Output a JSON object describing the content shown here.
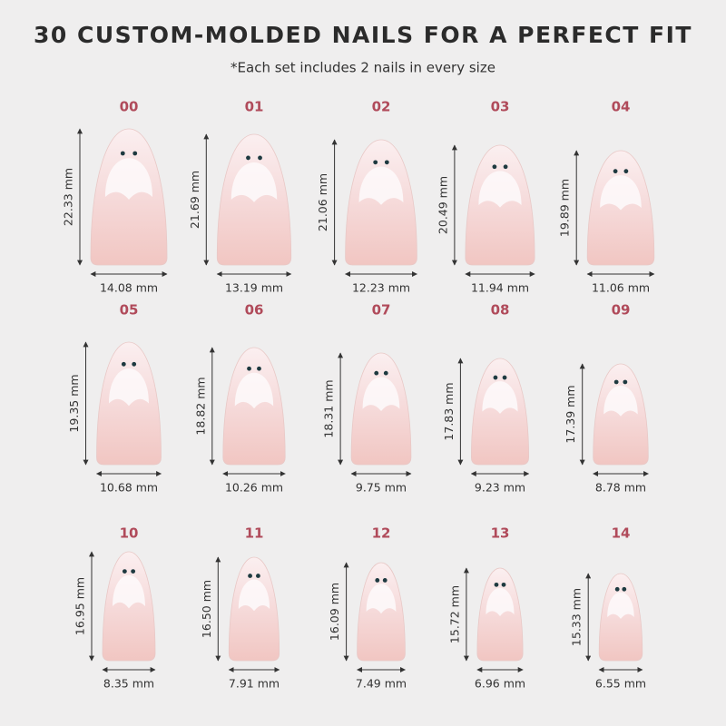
{
  "title": "30 CUSTOM-MOLDED NAILS FOR A PERFECT FIT",
  "subtitle": "*Each set includes 2 nails in every size",
  "nails": [
    {
      "size": "00",
      "height": "22.33 mm",
      "width": "14.08 mm"
    },
    {
      "size": "01",
      "height": "21.69 mm",
      "width": "13.19 mm"
    },
    {
      "size": "02",
      "height": "21.06 mm",
      "width": "12.23 mm"
    },
    {
      "size": "03",
      "height": "20.49 mm",
      "width": "11.94 mm"
    },
    {
      "size": "04",
      "height": "19.89 mm",
      "width": "11.06 mm"
    },
    {
      "size": "05",
      "height": "19.35 mm",
      "width": "10.68 mm"
    },
    {
      "size": "06",
      "height": "18.82 mm",
      "width": "10.26 mm"
    },
    {
      "size": "07",
      "height": "18.31 mm",
      "width": "9.75 mm"
    },
    {
      "size": "08",
      "height": "17.83 mm",
      "width": "9.23 mm"
    },
    {
      "size": "09",
      "height": "17.39 mm",
      "width": "8.78 mm"
    },
    {
      "size": "10",
      "height": "16.95 mm",
      "width": "8.35 mm"
    },
    {
      "size": "11",
      "height": "16.50 mm",
      "width": "7.91 mm"
    },
    {
      "size": "12",
      "height": "16.09 mm",
      "width": "7.49 mm"
    },
    {
      "size": "13",
      "height": "15.72 mm",
      "width": "6.96 mm"
    },
    {
      "size": "14",
      "height": "15.33 mm",
      "width": "6.55 mm"
    }
  ]
}
